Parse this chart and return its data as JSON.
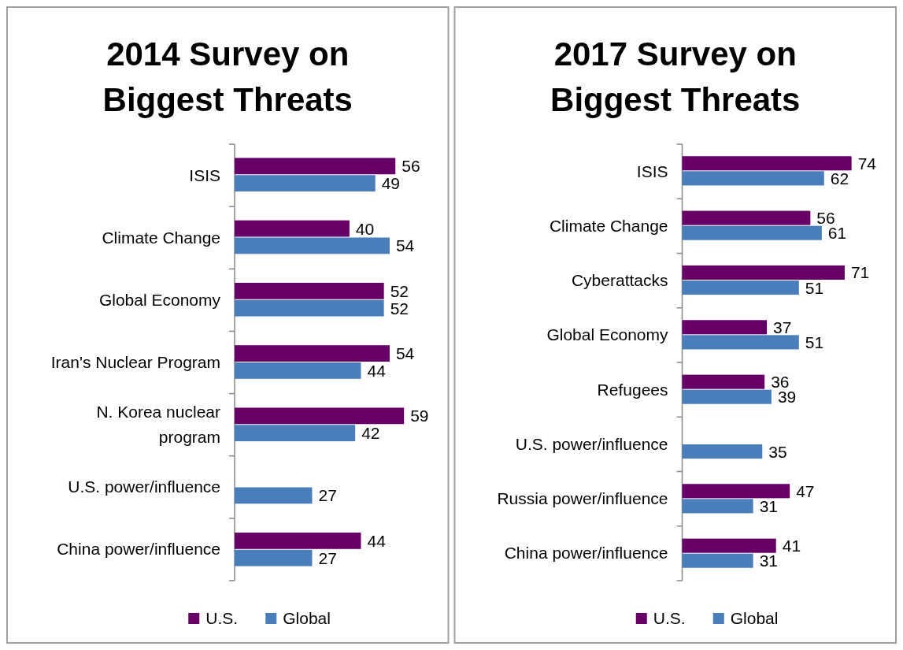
{
  "chart_data": [
    {
      "type": "bar",
      "orientation": "horizontal",
      "title": "2014 Survey on Biggest Threats",
      "categories": [
        "ISIS",
        "Climate Change",
        "Global Economy",
        "Iran's Nuclear Program",
        "N. Korea nuclear program",
        "U.S. power/influence",
        "China power/influence"
      ],
      "series": [
        {
          "name": "U.S.",
          "color": "#660066",
          "values": [
            56,
            40,
            52,
            54,
            59,
            null,
            44
          ]
        },
        {
          "name": "Global",
          "color": "#4a7ebb",
          "values": [
            49,
            54,
            52,
            44,
            42,
            27,
            27
          ]
        }
      ],
      "data_labels": true,
      "legend": "bottom",
      "grid": false
    },
    {
      "type": "bar",
      "orientation": "horizontal",
      "title": "2017 Survey on Biggest Threats",
      "categories": [
        "ISIS",
        "Climate Change",
        "Cyberattacks",
        "Global Economy",
        "Refugees",
        "U.S. power/influence",
        "Russia power/influence",
        "China power/influence"
      ],
      "series": [
        {
          "name": "U.S.",
          "color": "#660066",
          "values": [
            74,
            56,
            71,
            37,
            36,
            null,
            47,
            41
          ]
        },
        {
          "name": "Global",
          "color": "#4a7ebb",
          "values": [
            62,
            61,
            51,
            51,
            39,
            35,
            31,
            31
          ]
        }
      ],
      "data_labels": true,
      "legend": "bottom",
      "grid": false
    }
  ]
}
